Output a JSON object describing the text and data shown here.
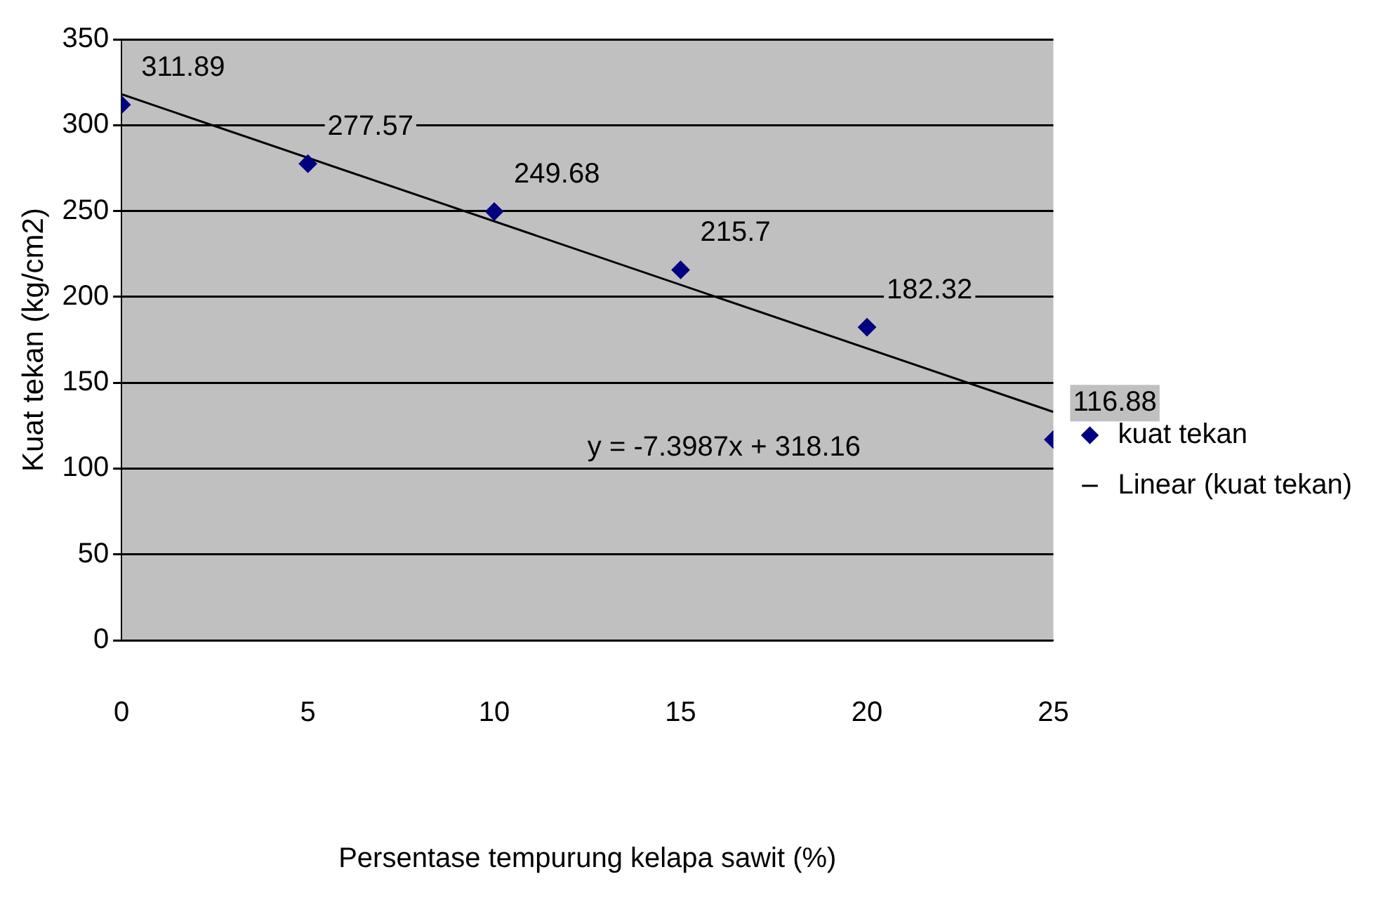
{
  "chart_data": {
    "type": "scatter",
    "xlabel": "Persentase tempurung kelapa sawit (%)",
    "ylabel": "Kuat tekan (kg/cm2)",
    "x": [
      0,
      5,
      10,
      15,
      20,
      25
    ],
    "series": [
      {
        "name": "kuat tekan",
        "color": "#000080",
        "values": [
          311.89,
          277.57,
          249.68,
          215.7,
          182.32,
          116.88
        ],
        "value_labels": [
          "311.89",
          "277.57",
          "249.68",
          "215.7",
          "182.32",
          "116.88"
        ]
      },
      {
        "name": "Linear (kuat tekan)",
        "type": "line",
        "marker": "none",
        "color": "#000000",
        "x": [
          0,
          25
        ],
        "values": [
          318,
          133
        ]
      }
    ],
    "xlim": [
      0,
      25
    ],
    "xticks": [
      0,
      5,
      10,
      15,
      20,
      25
    ],
    "ylim": [
      0,
      350
    ],
    "yticks": [
      0,
      50,
      100,
      150,
      200,
      250,
      300,
      350
    ],
    "grid": "y",
    "legend": "right",
    "marker": "diamond",
    "line_style": "solid",
    "annotations": [
      "y = -7.3987x + 318.16"
    ]
  }
}
